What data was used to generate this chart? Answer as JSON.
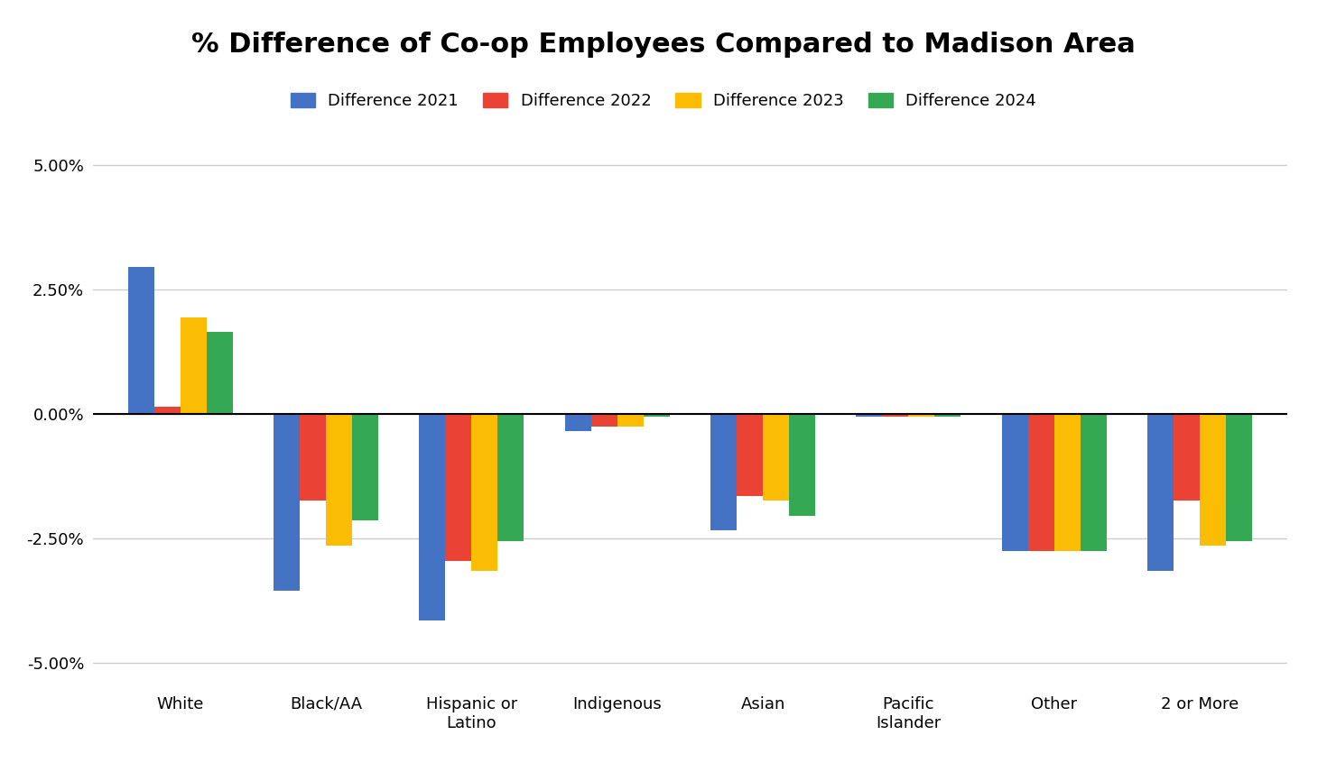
{
  "title": "% Difference of Co-op Employees Compared to Madison Area",
  "categories": [
    "White",
    "Black/AA",
    "Hispanic or\nLatino",
    "Indigenous",
    "Asian",
    "Pacific\nIslander",
    "Other",
    "2 or More"
  ],
  "series": {
    "Difference 2021": [
      2.95,
      -3.55,
      -4.15,
      -0.35,
      -2.35,
      -0.05,
      -2.75,
      -3.15
    ],
    "Difference 2022": [
      0.15,
      -1.75,
      -2.95,
      -0.25,
      -1.65,
      -0.05,
      -2.75,
      -1.75
    ],
    "Difference 2023": [
      1.95,
      -2.65,
      -3.15,
      -0.25,
      -1.75,
      -0.05,
      -2.75,
      -2.65
    ],
    "Difference 2024": [
      1.65,
      -2.15,
      -2.55,
      -0.05,
      -2.05,
      -0.05,
      -2.75,
      -2.55
    ]
  },
  "colors": {
    "Difference 2021": "#4472C4",
    "Difference 2022": "#EA4335",
    "Difference 2023": "#FBBC04",
    "Difference 2024": "#34A853"
  },
  "ylim": [
    -5.5,
    5.5
  ],
  "yticks": [
    -5.0,
    -2.5,
    0.0,
    2.5,
    5.0
  ],
  "ytick_labels": [
    "-5.00%",
    "-2.50%",
    "0.00%",
    "2.50%",
    "5.00%"
  ],
  "background_color": "#ffffff",
  "grid_color": "#cccccc",
  "bar_width": 0.18,
  "legend_order": [
    "Difference 2021",
    "Difference 2022",
    "Difference 2023",
    "Difference 2024"
  ],
  "title_fontsize": 22,
  "legend_fontsize": 13,
  "tick_fontsize": 13,
  "xlabel_fontsize": 13
}
